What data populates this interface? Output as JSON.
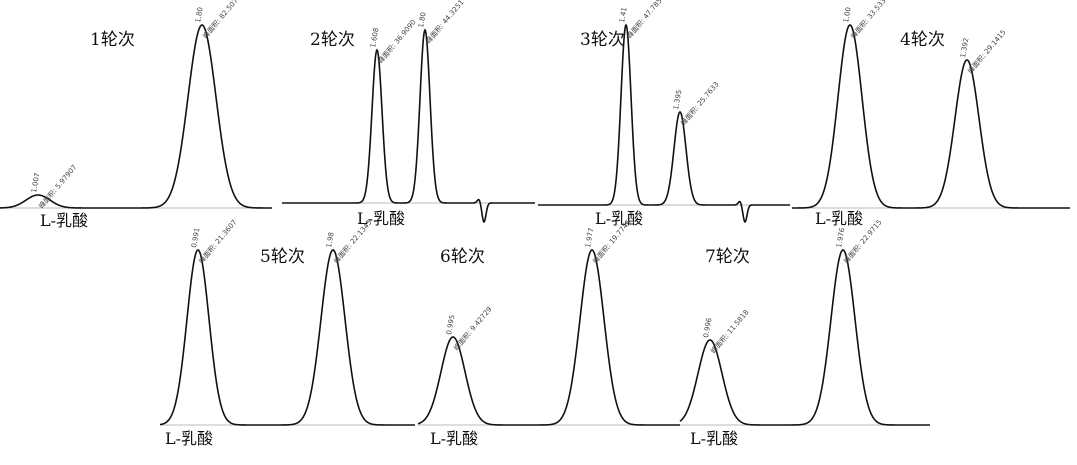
{
  "panels": [
    {
      "round": "1轮次",
      "compound": "L-乳酸",
      "peaks": [
        {
          "time": "1.007",
          "area": "峰面积: 5.97907"
        },
        {
          "time": "1.80",
          "area": "峰面积: 82.5077"
        }
      ]
    },
    {
      "round": "2轮次",
      "compound": "L-乳酸",
      "peaks": [
        {
          "time": "1.608",
          "area": "峰面积: 36.9090"
        },
        {
          "time": "1.80",
          "area": "峰面积: 44.3251"
        }
      ]
    },
    {
      "round": "3轮次",
      "compound": "L-乳酸",
      "peaks": [
        {
          "time": "1.41",
          "area": "峰面积: 47.7858"
        },
        {
          "time": "1.395",
          "area": "峰面积: 25.7633"
        }
      ]
    },
    {
      "round": "4轮次",
      "compound": "L-乳酸",
      "peaks": [
        {
          "time": "1.00",
          "area": "峰面积: 33.5335"
        },
        {
          "time": "1.392",
          "area": "峰面积: 29.1415"
        }
      ]
    },
    {
      "round": "5轮次",
      "compound": "L-乳酸",
      "peaks": [
        {
          "time": "0.991",
          "area": "峰面积: 21.3607"
        },
        {
          "time": "1.98",
          "area": "峰面积: 22.1345"
        }
      ]
    },
    {
      "round": "6轮次",
      "compound": "L-乳酸",
      "peaks": [
        {
          "time": "0.995",
          "area": "峰面积: 9.42729"
        },
        {
          "time": "1.977",
          "area": "峰面积: 19.7746"
        }
      ]
    },
    {
      "round": "7轮次",
      "compound": "L-乳酸",
      "peaks": [
        {
          "time": "0.996",
          "area": "峰面积: 11.5818"
        },
        {
          "time": "1.976",
          "area": "峰面积: 22.9715"
        }
      ]
    }
  ]
}
